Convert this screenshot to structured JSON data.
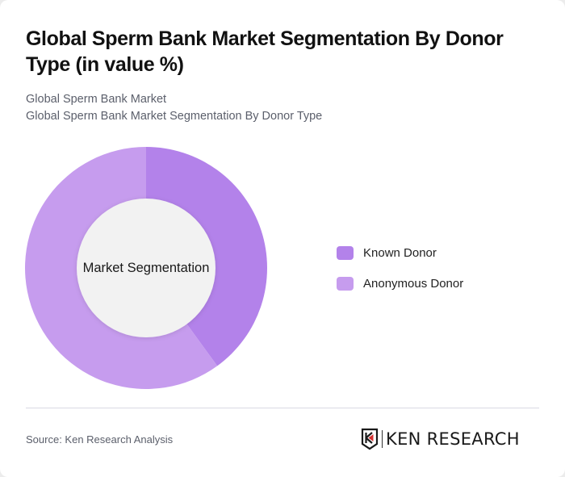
{
  "header": {
    "title": "Global Sperm Bank Market Segmentation By Donor Type (in value %)",
    "subtitle_1": "Global Sperm Bank Market",
    "subtitle_2": "Global Sperm Bank Market Segmentation By Donor Type"
  },
  "chart": {
    "center_label": "Market Segmentation",
    "legend": [
      {
        "label": "Known Donor",
        "color": "#b382ea"
      },
      {
        "label": "Anonymous Donor",
        "color": "#c69cee"
      }
    ]
  },
  "footer": {
    "source": "Source: Ken Research Analysis",
    "logo_text": "KEN RESEARCH"
  },
  "chart_data": {
    "type": "pie",
    "subtype": "donut",
    "title": "Global Sperm Bank Market Segmentation By Donor Type (in value %)",
    "center_text": "Market Segmentation",
    "categories": [
      "Known Donor",
      "Anonymous Donor"
    ],
    "values": [
      40,
      60
    ],
    "colors": [
      "#b382ea",
      "#c69cee"
    ],
    "legend_position": "right",
    "start_angle": "12 o'clock, clockwise"
  }
}
